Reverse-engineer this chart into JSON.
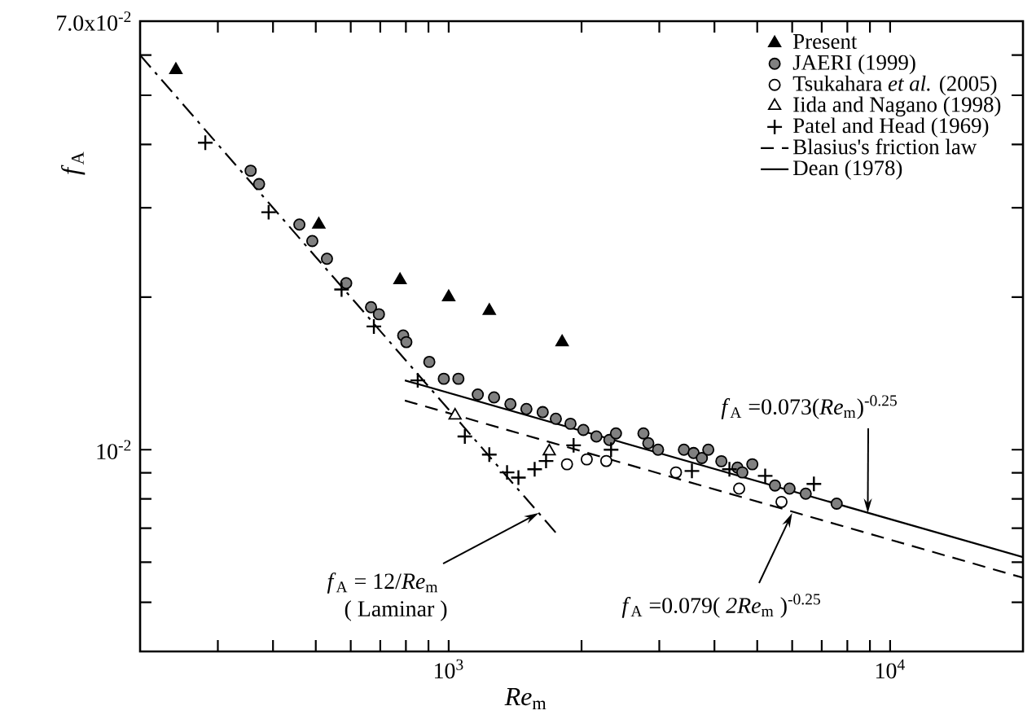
{
  "chart_data": {
    "type": "scatter",
    "xlabel": "*Re*$_{m}$",
    "ylabel": "*f*$_{A}$",
    "log": "xy",
    "xlim": [
      200,
      20000
    ],
    "ylim": [
      0.004,
      0.07
    ],
    "xticks": [
      {
        "value": 300,
        "label": null
      },
      {
        "value": 400,
        "label": null
      },
      {
        "value": 500,
        "label": null
      },
      {
        "value": 600,
        "label": null
      },
      {
        "value": 700,
        "label": null
      },
      {
        "value": 800,
        "label": null
      },
      {
        "value": 900,
        "label": null
      },
      {
        "value": 1000,
        "label": "10$^{3}$"
      },
      {
        "value": 2000,
        "label": null
      },
      {
        "value": 3000,
        "label": null
      },
      {
        "value": 4000,
        "label": null
      },
      {
        "value": 5000,
        "label": null
      },
      {
        "value": 6000,
        "label": null
      },
      {
        "value": 7000,
        "label": null
      },
      {
        "value": 8000,
        "label": null
      },
      {
        "value": 9000,
        "label": null
      },
      {
        "value": 10000,
        "label": "10$^{4}$"
      }
    ],
    "yticks": [
      {
        "value": 0.005,
        "label": null
      },
      {
        "value": 0.006,
        "label": null
      },
      {
        "value": 0.007,
        "label": null
      },
      {
        "value": 0.008,
        "label": null
      },
      {
        "value": 0.009,
        "label": null
      },
      {
        "value": 0.01,
        "label": "10$^{-2}$"
      },
      {
        "value": 0.02,
        "label": null
      },
      {
        "value": 0.03,
        "label": null
      },
      {
        "value": 0.04,
        "label": null
      },
      {
        "value": 0.05,
        "label": null
      },
      {
        "value": 0.06,
        "label": null
      },
      {
        "value": 0.07,
        "label": "7.0x10$^{-2}$"
      }
    ],
    "legend": "top right",
    "series": [
      {
        "name": "Present",
        "marker": "triangle",
        "color": "#000000",
        "x": [
          241,
          508,
          776,
          1000,
          1236,
          1807
        ],
        "values": [
          0.0561,
          0.0278,
          0.0216,
          0.02,
          0.0188,
          0.0163
        ]
      },
      {
        "name": "JAERI (1999)",
        "marker": "circle",
        "color": "#808080",
        "x": [
          356,
          372,
          459,
          491,
          530,
          586,
          667,
          695,
          789,
          802,
          904,
          975,
          1052,
          1164,
          1267,
          1380,
          1500,
          1633,
          1749,
          1888,
          2019,
          2161,
          2312,
          2393,
          2762,
          2833,
          2981,
          3411,
          3588,
          3746,
          3874,
          4147,
          4510,
          4626,
          4874,
          5485,
          5918,
          6440,
          7568
        ],
        "values": [
          0.0355,
          0.0334,
          0.0278,
          0.0258,
          0.0238,
          0.0213,
          0.0191,
          0.0185,
          0.0168,
          0.0163,
          0.0149,
          0.0138,
          0.0138,
          0.01285,
          0.01268,
          0.0123,
          0.01203,
          0.01186,
          0.01151,
          0.01125,
          0.01094,
          0.01062,
          0.01045,
          0.01077,
          0.01077,
          0.0103,
          0.01,
          0.01,
          0.00985,
          0.00963,
          0.01,
          0.00949,
          0.00922,
          0.00902,
          0.00936,
          0.0085,
          0.00838,
          0.00819,
          0.00783
        ]
      },
      {
        "name": "Tsukahara *et al.* (2005)",
        "marker": "circle",
        "color": "#ffffff",
        "x": [
          1854,
          2055,
          2275,
          3273,
          4550,
          5675
        ],
        "values": [
          0.00936,
          0.00957,
          0.0095,
          0.00902,
          0.00838,
          0.00789
        ]
      },
      {
        "name": "Iida and Nagano (1998)",
        "marker": "triangle",
        "color": "#ffffff",
        "x": [
          1034,
          1690
        ],
        "values": [
          0.01168,
          0.00993
        ]
      },
      {
        "name": "Patel and Head (1969)",
        "marker": "cross",
        "color": "#000000",
        "x": [
          281,
          391,
          572,
          677,
          851,
          1088,
          1236,
          1356,
          1439,
          1566,
          1662,
          1919,
          2333,
          3557,
          4325,
          5212,
          6720
        ],
        "values": [
          0.0403,
          0.0294,
          0.0207,
          0.0175,
          0.0137,
          0.01062,
          0.00978,
          0.00902,
          0.00881,
          0.00915,
          0.0095,
          0.0102,
          0.01,
          0.00908,
          0.00915,
          0.00888,
          0.00856
        ]
      },
      {
        "name": "Blasius's friction law",
        "type": "line",
        "line_style": "dashed",
        "color": "#000000",
        "x": [
          796,
          20000
        ],
        "values": [
          0.0125,
          0.00559
        ]
      },
      {
        "name": "Dean (1978)",
        "type": "line",
        "line_style": "solid",
        "color": "#000000",
        "x": [
          796,
          20000
        ],
        "values": [
          0.0137,
          0.00614
        ]
      },
      {
        "type": "line",
        "line_style": "dashdot",
        "color": "#000000",
        "x": [
          200,
          1780
        ],
        "values": [
          0.06,
          0.00674
        ]
      }
    ],
    "annotations": [
      {
        "text": "*f*$_{A}$ = 12/*Re*$_{m}$",
        "x": 1600,
        "y": 0.0075
      },
      "( Laminar )",
      {
        "text": "*f*$_{A}$ =0.073(*Re*$_{m}$)$^{-0.25}$",
        "x": 8900,
        "y": 0.0075
      },
      {
        "text": "*f*$_{A}$ =0.079( *2Re*$_{m}$ )$^{-0.25}$",
        "x": 6000,
        "y": 0.0075
      }
    ]
  }
}
